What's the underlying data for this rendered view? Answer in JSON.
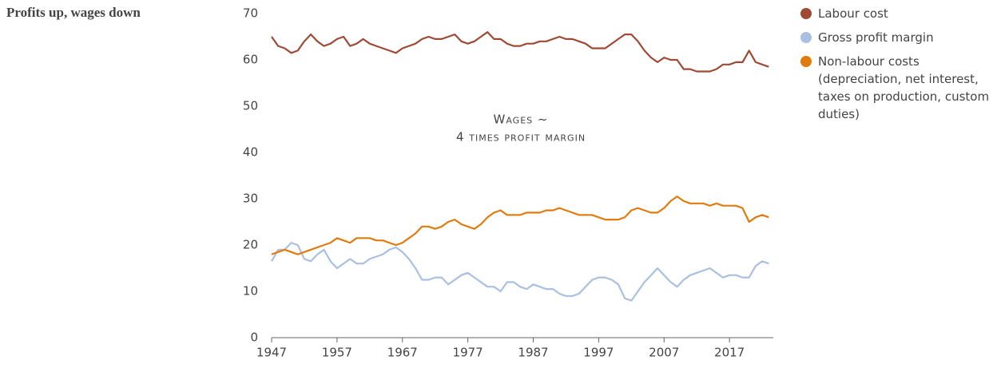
{
  "chart_data": {
    "type": "line",
    "title": "Profits up, wages down",
    "annotation": [
      "Wages ~",
      "4 times profit margin"
    ],
    "x": [
      1947,
      1948,
      1949,
      1950,
      1951,
      1952,
      1953,
      1954,
      1955,
      1956,
      1957,
      1958,
      1959,
      1960,
      1961,
      1962,
      1963,
      1964,
      1965,
      1966,
      1967,
      1968,
      1969,
      1970,
      1971,
      1972,
      1973,
      1974,
      1975,
      1976,
      1977,
      1978,
      1979,
      1980,
      1981,
      1982,
      1983,
      1984,
      1985,
      1986,
      1987,
      1988,
      1989,
      1990,
      1991,
      1992,
      1993,
      1994,
      1995,
      1996,
      1997,
      1998,
      1999,
      2000,
      2001,
      2002,
      2003,
      2004,
      2005,
      2006,
      2007,
      2008,
      2009,
      2010,
      2011,
      2012,
      2013,
      2014,
      2015,
      2016,
      2017,
      2018,
      2019,
      2020,
      2021,
      2022,
      2023
    ],
    "series": [
      {
        "name": "Labour cost",
        "color": "#9e4a35",
        "values": [
          65,
          63,
          62.5,
          61.5,
          62,
          64,
          65.5,
          64,
          63,
          63.5,
          64.5,
          65,
          63,
          63.5,
          64.5,
          63.5,
          63,
          62.5,
          62,
          61.5,
          62.5,
          63,
          63.5,
          64.5,
          65,
          64.5,
          64.5,
          65,
          65.5,
          64,
          63.5,
          64,
          65,
          66,
          64.5,
          64.5,
          63.5,
          63,
          63,
          63.5,
          63.5,
          64,
          64,
          64.5,
          65,
          64.5,
          64.5,
          64,
          63.5,
          62.5,
          62.5,
          62.5,
          63.5,
          64.5,
          65.5,
          65.5,
          64,
          62,
          60.5,
          59.5,
          60.5,
          60,
          60,
          58,
          58,
          57.5,
          57.5,
          57.5,
          58,
          59,
          59,
          59.5,
          59.5,
          62,
          59.5,
          59,
          58.5
        ]
      },
      {
        "name": "Gross profit margin",
        "color": "#a9c0e0",
        "values": [
          16.5,
          19,
          19,
          20.5,
          20,
          17,
          16.5,
          18,
          19,
          16.5,
          15,
          16,
          17,
          16,
          16,
          17,
          17.5,
          18,
          19,
          19.5,
          18.5,
          17,
          15,
          12.5,
          12.5,
          13,
          13,
          11.5,
          12.5,
          13.5,
          14,
          13,
          12,
          11,
          11,
          10,
          12,
          12,
          11,
          10.5,
          11.5,
          11,
          10.5,
          10.5,
          9.5,
          9,
          9,
          9.5,
          11,
          12.5,
          13,
          13,
          12.5,
          11.5,
          8.5,
          8,
          10,
          12,
          13.5,
          15,
          13.5,
          12,
          11,
          12.5,
          13.5,
          14,
          14.5,
          15,
          14,
          13,
          13.5,
          13.5,
          13,
          13,
          15.5,
          16.5,
          16
        ]
      },
      {
        "name": "Non-labour costs (depreciation, net interest, taxes on production, custom duties)",
        "color": "#e07b0e",
        "values": [
          18,
          18.5,
          19,
          18.5,
          18,
          18.5,
          19,
          19.5,
          20,
          20.5,
          21.5,
          21,
          20.5,
          21.5,
          21.5,
          21.5,
          21,
          21,
          20.5,
          20,
          20.5,
          21.5,
          22.5,
          24,
          24,
          23.5,
          24,
          25,
          25.5,
          24.5,
          24,
          23.5,
          24.5,
          26,
          27,
          27.5,
          26.5,
          26.5,
          26.5,
          27,
          27,
          27,
          27.5,
          27.5,
          28,
          27.5,
          27,
          26.5,
          26.5,
          26.5,
          26,
          25.5,
          25.5,
          25.5,
          26,
          27.5,
          28,
          27.5,
          27,
          27,
          28,
          29.5,
          30.5,
          29.5,
          29,
          29,
          29,
          28.5,
          29,
          28.5,
          28.5,
          28.5,
          28,
          25,
          26,
          26.5,
          26
        ]
      }
    ],
    "xlim": [
      1947,
      2023.7
    ],
    "xticks": [
      1947,
      1957,
      1967,
      1977,
      1987,
      1997,
      2007,
      2017
    ],
    "ylim": [
      0,
      70
    ],
    "yticks": [
      0,
      10,
      20,
      30,
      40,
      50,
      60,
      70
    ]
  }
}
